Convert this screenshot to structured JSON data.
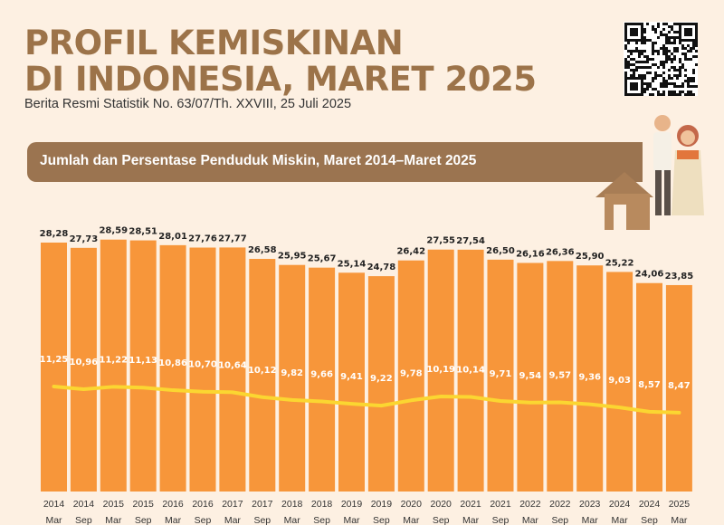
{
  "header": {
    "title_line1": "PROFIL KEMISKINAN",
    "title_line2": "DI INDONESIA, MARET 2025",
    "subtitle": "Berita Resmi Statistik No. 63/07/Th. XXVIII, 25 Juli 2025",
    "banner": "Jumlah dan Persentase Penduduk Miskin, Maret 2014–Maret 2025"
  },
  "colors": {
    "background": "#fdf0e2",
    "title": "#9c7349",
    "banner": "#9b7450",
    "bar": "#f7963a",
    "line": "#fbd631"
  },
  "icons": {
    "qr": "qr-code",
    "illustration": "elderly-couple-house"
  },
  "chart_data": {
    "type": "bar",
    "title": "Jumlah dan Persentase Penduduk Miskin, Maret 2014–Maret 2025",
    "categories": [
      {
        "year": "2014",
        "period": "Mar"
      },
      {
        "year": "2014",
        "period": "Sep"
      },
      {
        "year": "2015",
        "period": "Mar"
      },
      {
        "year": "2015",
        "period": "Sep"
      },
      {
        "year": "2016",
        "period": "Mar"
      },
      {
        "year": "2016",
        "period": "Sep"
      },
      {
        "year": "2017",
        "period": "Mar"
      },
      {
        "year": "2017",
        "period": "Sep"
      },
      {
        "year": "2018",
        "period": "Mar"
      },
      {
        "year": "2018",
        "period": "Sep"
      },
      {
        "year": "2019",
        "period": "Mar"
      },
      {
        "year": "2019",
        "period": "Sep"
      },
      {
        "year": "2020",
        "period": "Mar"
      },
      {
        "year": "2020",
        "period": "Sep"
      },
      {
        "year": "2021",
        "period": "Mar"
      },
      {
        "year": "2021",
        "period": "Sep"
      },
      {
        "year": "2022",
        "period": "Mar"
      },
      {
        "year": "2022",
        "period": "Sep"
      },
      {
        "year": "2023",
        "period": "Mar"
      },
      {
        "year": "2024",
        "period": "Mar"
      },
      {
        "year": "2024",
        "period": "Sep"
      },
      {
        "year": "2025",
        "period": "Mar"
      }
    ],
    "series": [
      {
        "type": "bar",
        "values": [
          28.28,
          27.73,
          28.59,
          28.51,
          28.01,
          27.76,
          27.77,
          26.58,
          25.95,
          25.67,
          25.14,
          24.78,
          26.42,
          27.55,
          27.54,
          26.5,
          26.16,
          26.36,
          25.9,
          25.22,
          24.06,
          23.85
        ],
        "labels": [
          "28,28",
          "27,73",
          "28,59",
          "28,51",
          "28,01",
          "27,76",
          "27,77",
          "26,58",
          "25,95",
          "25,67",
          "25,14",
          "24,78",
          "26,42",
          "27,55",
          "27,54",
          "26,50",
          "26,16",
          "26,36",
          "25,90",
          "25,22",
          "24,06",
          "23,85"
        ]
      },
      {
        "type": "line",
        "values": [
          11.25,
          10.96,
          11.22,
          11.13,
          10.86,
          10.7,
          10.64,
          10.12,
          9.82,
          9.66,
          9.41,
          9.22,
          9.78,
          10.19,
          10.14,
          9.71,
          9.54,
          9.57,
          9.36,
          9.03,
          8.57,
          8.47
        ],
        "labels": [
          "11,25",
          "10,96",
          "11,22",
          "11,13",
          "10,86",
          "10,70",
          "10,64",
          "10,12",
          "9,82",
          "9,66",
          "9,41",
          "9,22",
          "9,78",
          "10,19",
          "10,14",
          "9,71",
          "9,54",
          "9,57",
          "9,36",
          "9,03",
          "8,57",
          "8,47"
        ]
      }
    ],
    "grid": false,
    "legend": "none"
  }
}
